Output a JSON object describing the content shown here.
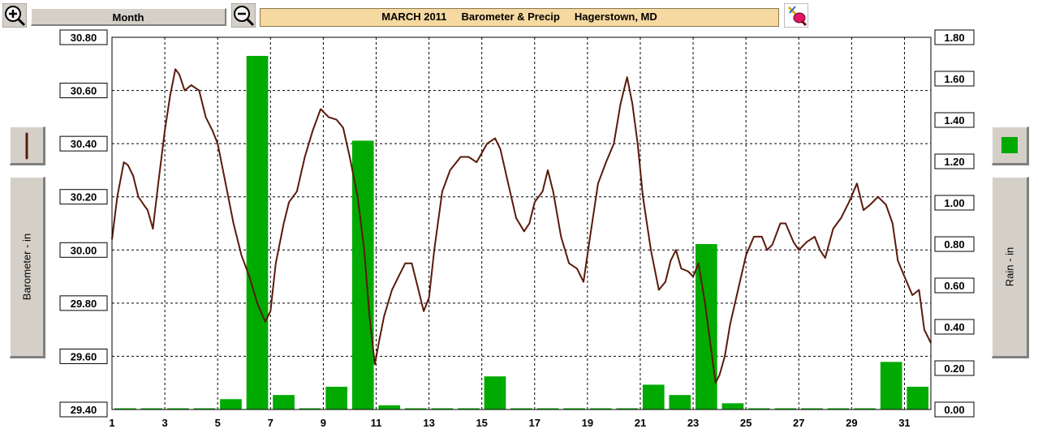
{
  "toolbar": {
    "period_label": "Month",
    "title": "MARCH 2011     Barometer & Precip     Hagerstown, MD",
    "zoom_in_icon": "zoom-in-icon",
    "zoom_out_icon": "zoom-out-icon",
    "marker_icon": "marker-pen-icon"
  },
  "side_panels": {
    "barometer_label": "Barometer - in",
    "rain_label": "Rain - in",
    "barometer_color": "#5a1a0a",
    "rain_color": "#00aa00"
  },
  "chart_data": {
    "type": "line+bar",
    "x_tick_labels": [
      "1",
      "3",
      "5",
      "7",
      "9",
      "11",
      "13",
      "15",
      "17",
      "19",
      "21",
      "23",
      "25",
      "27",
      "29",
      "31"
    ],
    "xlim": [
      1,
      32
    ],
    "grid": true,
    "series": [
      {
        "name": "Barometer - in",
        "axis": "left",
        "type": "line",
        "color": "#5a1a0a",
        "ylim": [
          29.4,
          30.8
        ],
        "y_tick_labels": [
          "29.40",
          "29.60",
          "29.80",
          "30.00",
          "30.20",
          "30.40",
          "30.60",
          "30.80"
        ],
        "points": [
          [
            1.0,
            30.04
          ],
          [
            1.2,
            30.2
          ],
          [
            1.45,
            30.33
          ],
          [
            1.6,
            30.32
          ],
          [
            1.8,
            30.28
          ],
          [
            2.0,
            30.2
          ],
          [
            2.2,
            30.17
          ],
          [
            2.35,
            30.15
          ],
          [
            2.55,
            30.08
          ],
          [
            2.75,
            30.25
          ],
          [
            3.0,
            30.45
          ],
          [
            3.2,
            30.58
          ],
          [
            3.4,
            30.68
          ],
          [
            3.55,
            30.66
          ],
          [
            3.75,
            30.6
          ],
          [
            4.0,
            30.62
          ],
          [
            4.3,
            30.6
          ],
          [
            4.55,
            30.5
          ],
          [
            4.8,
            30.45
          ],
          [
            5.0,
            30.4
          ],
          [
            5.3,
            30.25
          ],
          [
            5.6,
            30.1
          ],
          [
            5.9,
            29.98
          ],
          [
            6.2,
            29.9
          ],
          [
            6.5,
            29.8
          ],
          [
            6.8,
            29.73
          ],
          [
            7.0,
            29.77
          ],
          [
            7.2,
            29.95
          ],
          [
            7.5,
            30.1
          ],
          [
            7.7,
            30.18
          ],
          [
            8.0,
            30.22
          ],
          [
            8.3,
            30.35
          ],
          [
            8.6,
            30.45
          ],
          [
            8.9,
            30.53
          ],
          [
            9.2,
            30.5
          ],
          [
            9.5,
            30.49
          ],
          [
            9.75,
            30.46
          ],
          [
            10.0,
            30.35
          ],
          [
            10.3,
            30.2
          ],
          [
            10.55,
            30.0
          ],
          [
            10.75,
            29.75
          ],
          [
            10.95,
            29.57
          ],
          [
            11.1,
            29.65
          ],
          [
            11.3,
            29.75
          ],
          [
            11.6,
            29.85
          ],
          [
            11.85,
            29.9
          ],
          [
            12.1,
            29.95
          ],
          [
            12.35,
            29.95
          ],
          [
            12.6,
            29.85
          ],
          [
            12.8,
            29.77
          ],
          [
            13.0,
            29.82
          ],
          [
            13.2,
            30.0
          ],
          [
            13.5,
            30.22
          ],
          [
            13.8,
            30.3
          ],
          [
            14.2,
            30.35
          ],
          [
            14.5,
            30.35
          ],
          [
            14.8,
            30.33
          ],
          [
            15.2,
            30.4
          ],
          [
            15.5,
            30.42
          ],
          [
            15.7,
            30.38
          ],
          [
            16.0,
            30.25
          ],
          [
            16.3,
            30.12
          ],
          [
            16.6,
            30.07
          ],
          [
            16.8,
            30.1
          ],
          [
            17.0,
            30.18
          ],
          [
            17.3,
            30.22
          ],
          [
            17.5,
            30.3
          ],
          [
            17.7,
            30.22
          ],
          [
            18.0,
            30.05
          ],
          [
            18.3,
            29.95
          ],
          [
            18.6,
            29.93
          ],
          [
            18.85,
            29.88
          ],
          [
            19.1,
            30.05
          ],
          [
            19.4,
            30.25
          ],
          [
            19.7,
            30.33
          ],
          [
            20.0,
            30.4
          ],
          [
            20.25,
            30.55
          ],
          [
            20.5,
            30.65
          ],
          [
            20.7,
            30.55
          ],
          [
            20.9,
            30.4
          ],
          [
            21.1,
            30.2
          ],
          [
            21.4,
            30.0
          ],
          [
            21.7,
            29.85
          ],
          [
            21.95,
            29.88
          ],
          [
            22.15,
            29.96
          ],
          [
            22.35,
            30.0
          ],
          [
            22.55,
            29.93
          ],
          [
            22.8,
            29.92
          ],
          [
            23.0,
            29.9
          ],
          [
            23.2,
            29.95
          ],
          [
            23.45,
            29.8
          ],
          [
            23.65,
            29.65
          ],
          [
            23.85,
            29.5
          ],
          [
            24.0,
            29.53
          ],
          [
            24.2,
            29.6
          ],
          [
            24.4,
            29.72
          ],
          [
            24.7,
            29.85
          ],
          [
            25.0,
            29.98
          ],
          [
            25.3,
            30.05
          ],
          [
            25.6,
            30.05
          ],
          [
            25.8,
            30.0
          ],
          [
            26.0,
            30.02
          ],
          [
            26.3,
            30.1
          ],
          [
            26.5,
            30.1
          ],
          [
            26.8,
            30.03
          ],
          [
            27.0,
            30.0
          ],
          [
            27.3,
            30.03
          ],
          [
            27.6,
            30.05
          ],
          [
            27.8,
            30.0
          ],
          [
            28.0,
            29.97
          ],
          [
            28.3,
            30.08
          ],
          [
            28.6,
            30.12
          ],
          [
            28.9,
            30.18
          ],
          [
            29.2,
            30.25
          ],
          [
            29.45,
            30.15
          ],
          [
            29.7,
            30.17
          ],
          [
            30.0,
            30.2
          ],
          [
            30.3,
            30.17
          ],
          [
            30.55,
            30.1
          ],
          [
            30.75,
            29.96
          ],
          [
            31.0,
            29.9
          ],
          [
            31.3,
            29.83
          ],
          [
            31.55,
            29.85
          ],
          [
            31.75,
            29.7
          ],
          [
            32.0,
            29.65
          ]
        ]
      },
      {
        "name": "Rain - in",
        "axis": "right",
        "type": "bar",
        "color": "#00aa00",
        "ylim": [
          0.0,
          1.8
        ],
        "y_tick_labels": [
          "0.00",
          "0.20",
          "0.40",
          "0.60",
          "0.80",
          "1.00",
          "1.20",
          "1.40",
          "1.60",
          "1.80"
        ],
        "days": [
          1,
          2,
          3,
          4,
          5,
          6,
          7,
          8,
          9,
          10,
          11,
          12,
          13,
          14,
          15,
          16,
          17,
          18,
          19,
          20,
          21,
          22,
          23,
          24,
          25,
          26,
          27,
          28,
          29,
          30,
          31
        ],
        "values": [
          0,
          0,
          0,
          0,
          0.05,
          1.71,
          0.07,
          0,
          0.11,
          1.3,
          0.02,
          0,
          0,
          0,
          0.16,
          0,
          0,
          0,
          0,
          0,
          0.12,
          0.07,
          0.8,
          0.03,
          0,
          0,
          0,
          0,
          0,
          0.23,
          0.11
        ]
      }
    ]
  }
}
